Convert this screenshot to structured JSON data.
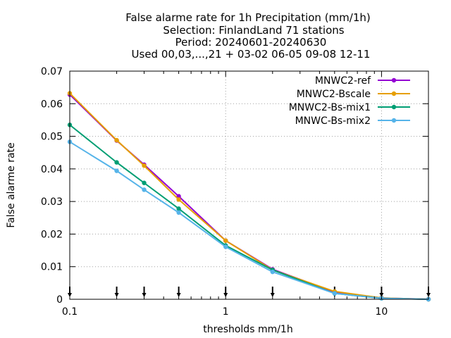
{
  "chart_data": {
    "type": "line",
    "title_lines": [
      "False alarme rate  for 1h Precipitation (mm/1h)",
      "Selection: FinlandLand     71 stations",
      "Period: 20240601-20240630",
      "Used 00,03,...,21 + 03-02 06-05 09-08 12-11"
    ],
    "xlabel": "thresholds mm/1h",
    "ylabel": "False alarme rate",
    "x_scale": "log",
    "xlim": [
      0.1,
      20
    ],
    "ylim": [
      0,
      0.07
    ],
    "x_ticks": [
      0.1,
      1,
      10
    ],
    "x_tick_labels": [
      "0.1",
      "1",
      "10"
    ],
    "y_ticks": [
      0,
      0.01,
      0.02,
      0.03,
      0.04,
      0.05,
      0.06,
      0.07
    ],
    "y_tick_labels": [
      "0",
      "0.01",
      "0.02",
      "0.03",
      "0.04",
      "0.05",
      "0.06",
      "0.07"
    ],
    "grid": true,
    "legend_position": "top-right",
    "x": [
      0.1,
      0.2,
      0.3,
      0.5,
      1,
      2,
      5,
      10,
      20
    ],
    "threshold_markers": [
      0.1,
      0.2,
      0.3,
      0.5,
      1,
      2,
      5,
      10,
      20
    ],
    "series": [
      {
        "name": "MNWC2-ref",
        "color": "#9400d3",
        "values": [
          0.0628,
          0.0487,
          0.0413,
          0.0316,
          0.018,
          0.0092,
          0.0022,
          0.0004,
          0.0
        ]
      },
      {
        "name": "MNWC2-Bscale",
        "color": "#e69f00",
        "values": [
          0.0632,
          0.0488,
          0.041,
          0.0306,
          0.018,
          0.009,
          0.0024,
          0.0004,
          0.0
        ]
      },
      {
        "name": "MNWC2-Bs-mix1",
        "color": "#009e73",
        "values": [
          0.0535,
          0.042,
          0.0357,
          0.0278,
          0.0165,
          0.009,
          0.0018,
          0.0003,
          0.0
        ]
      },
      {
        "name": "MNWC-Bs-mix2",
        "color": "#56b4e9",
        "values": [
          0.0483,
          0.0394,
          0.0336,
          0.0266,
          0.0161,
          0.0084,
          0.0018,
          0.0003,
          0.0
        ]
      }
    ]
  }
}
